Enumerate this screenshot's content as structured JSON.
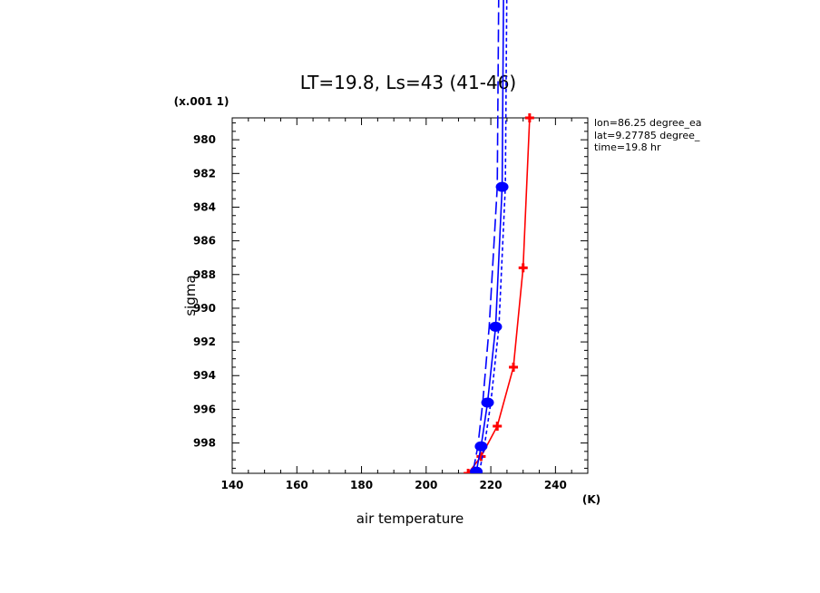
{
  "chart_data": {
    "type": "line",
    "title": "LT=19.8, Ls=43 (41-46)",
    "xlabel": "air temperature",
    "xunit": "(K)",
    "ylabel": "sigma",
    "yscale_note": "(x.001 1)",
    "xlim": [
      140,
      250
    ],
    "ylim": [
      999.8,
      978.7
    ],
    "y_inverted": true,
    "x_ticks": [
      140,
      160,
      180,
      200,
      220,
      240
    ],
    "y_ticks": [
      980,
      982,
      984,
      986,
      988,
      990,
      992,
      994,
      996,
      998
    ],
    "annotations": [
      "lon=86.25 degree_ea",
      "lat=9.27785 degree_",
      "time=19.8 hr"
    ],
    "series": [
      {
        "color": "#ff0000",
        "style": "solid",
        "marker": "cross",
        "points": [
          [
            213,
            999.8
          ],
          [
            217,
            998.8
          ],
          [
            222,
            997.0
          ],
          [
            227,
            993.5
          ],
          [
            230,
            987.6
          ],
          [
            232,
            978.7
          ]
        ]
      },
      {
        "color": "#0000ff",
        "style": "solid",
        "marker": "circle",
        "points": [
          [
            215.5,
            999.7
          ],
          [
            217,
            998.2
          ],
          [
            219,
            995.6
          ],
          [
            221.5,
            991.1
          ],
          [
            223.5,
            982.8
          ],
          [
            224,
            970
          ]
        ]
      },
      {
        "color": "#0000ff",
        "style": "longdash",
        "marker": "none",
        "points": [
          [
            214.5,
            999.7
          ],
          [
            216,
            998.2
          ],
          [
            217.5,
            995.6
          ],
          [
            219.5,
            991.1
          ],
          [
            222,
            982.8
          ],
          [
            222.5,
            970
          ]
        ]
      },
      {
        "color": "#0000ff",
        "style": "shortdash",
        "marker": "none",
        "points": [
          [
            216.5,
            999.7
          ],
          [
            218,
            998.2
          ],
          [
            220,
            995.6
          ],
          [
            222.5,
            991.1
          ],
          [
            224.5,
            982.8
          ],
          [
            225,
            970
          ]
        ]
      }
    ]
  }
}
